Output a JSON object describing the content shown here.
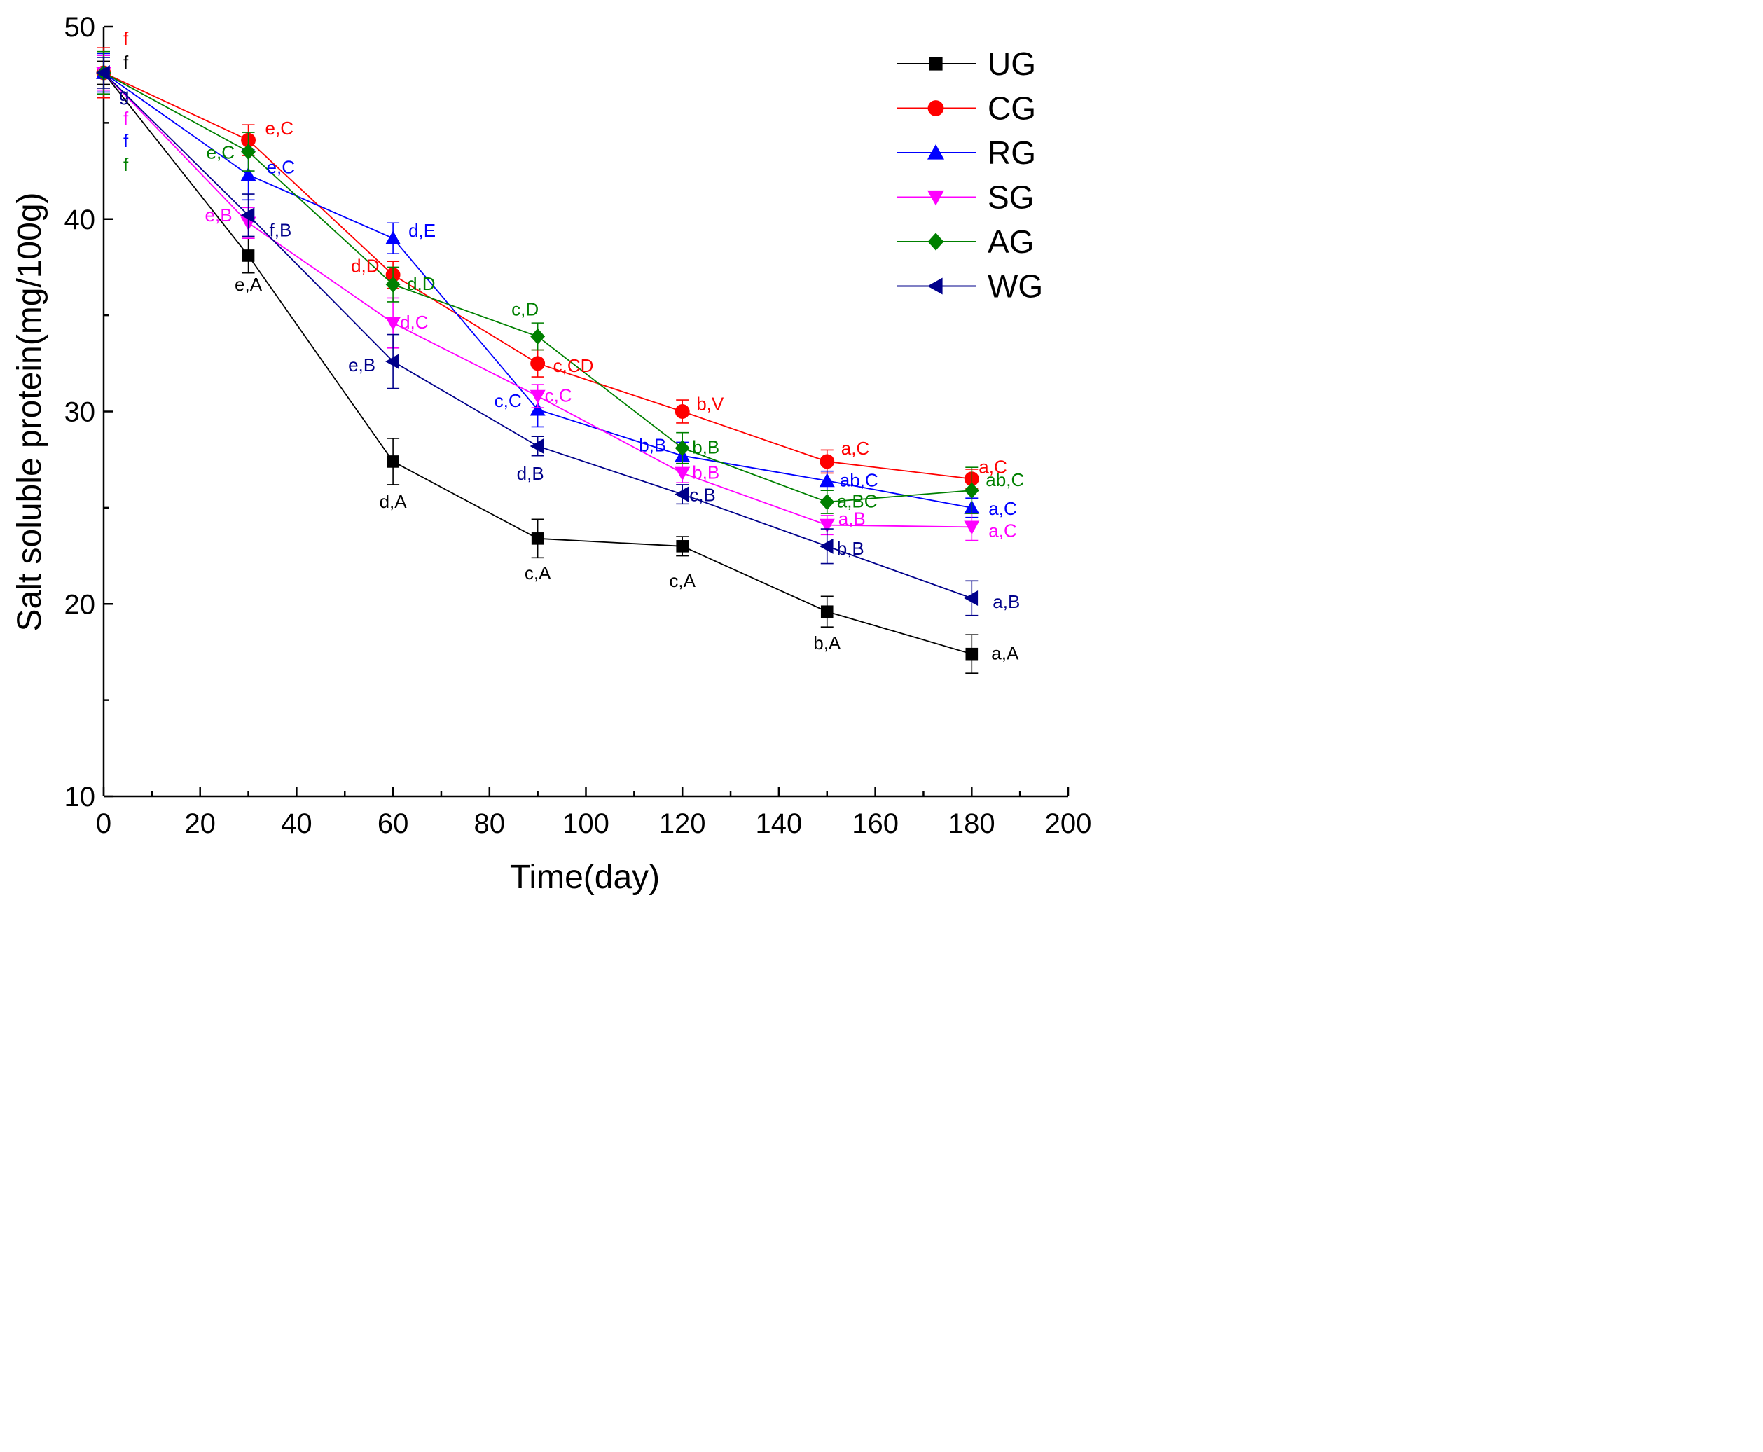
{
  "chart_data": {
    "type": "line",
    "title": "",
    "xlabel": "Time(day)",
    "ylabel": "Salt soluble protein(mg/100g)",
    "xlim": [
      0,
      200
    ],
    "ylim": [
      10,
      50
    ],
    "xticks": [
      0,
      20,
      40,
      60,
      80,
      100,
      120,
      140,
      160,
      180,
      200
    ],
    "yticks": [
      10,
      20,
      30,
      40,
      50
    ],
    "x": [
      0,
      30,
      60,
      90,
      120,
      150,
      180
    ],
    "legend_position": "top-right",
    "series": [
      {
        "name": "UG",
        "color": "#000000",
        "marker": "square",
        "values": [
          47.6,
          38.1,
          27.4,
          23.4,
          23.0,
          19.6,
          17.4
        ],
        "errors": [
          0.6,
          0.9,
          1.2,
          1.0,
          0.5,
          0.8,
          1.0
        ],
        "labels": [
          "f",
          "e,A",
          "d,A",
          "c,A",
          "c,A",
          "b,A",
          "a,A"
        ]
      },
      {
        "name": "CG",
        "color": "#ff0000",
        "marker": "circle",
        "values": [
          47.6,
          44.1,
          37.1,
          32.5,
          30.0,
          27.4,
          26.5
        ],
        "errors": [
          1.3,
          0.8,
          0.7,
          0.7,
          0.6,
          0.6,
          0.5
        ],
        "labels": [
          "f",
          "e,C",
          "d,D",
          "c,CD",
          "b,V",
          "a,C",
          "a,C"
        ]
      },
      {
        "name": "RG",
        "color": "#0000ff",
        "marker": "triangle-up",
        "values": [
          47.6,
          42.3,
          39.0,
          30.1,
          27.7,
          26.4,
          25.0
        ],
        "errors": [
          1.0,
          1.3,
          0.8,
          0.9,
          0.7,
          0.5,
          0.5
        ],
        "labels": [
          "f",
          "e,C",
          "d,E",
          "c,C",
          "b,B",
          "ab,C",
          "a,C"
        ]
      },
      {
        "name": "SG",
        "color": "#ff00ff",
        "marker": "triangle-down",
        "values": [
          47.6,
          39.8,
          34.6,
          30.8,
          26.8,
          24.1,
          24.0
        ],
        "errors": [
          0.9,
          0.8,
          1.3,
          0.6,
          0.5,
          0.5,
          0.7
        ],
        "labels": [
          "f",
          "e,B",
          "d,C",
          "c,C",
          "b,B",
          "a,B",
          "a,C"
        ]
      },
      {
        "name": "AG",
        "color": "#008000",
        "marker": "diamond",
        "values": [
          47.6,
          43.5,
          36.6,
          33.9,
          28.1,
          25.3,
          25.9
        ],
        "errors": [
          1.1,
          1.0,
          0.9,
          0.7,
          0.8,
          0.6,
          1.2
        ],
        "labels": [
          "f",
          "e,C",
          "d,D",
          "c,D",
          "b,B",
          "a,BC",
          "ab,C"
        ]
      },
      {
        "name": "WG",
        "color": "#00008b",
        "marker": "triangle-left",
        "values": [
          47.6,
          40.2,
          32.6,
          28.2,
          25.7,
          23.0,
          20.3
        ],
        "errors": [
          0.8,
          1.1,
          1.4,
          0.5,
          0.5,
          0.9,
          0.9
        ],
        "labels": [
          "g",
          "f,B",
          "e,B",
          "d,B",
          "c,B",
          "b,B",
          "a,B"
        ]
      }
    ]
  }
}
